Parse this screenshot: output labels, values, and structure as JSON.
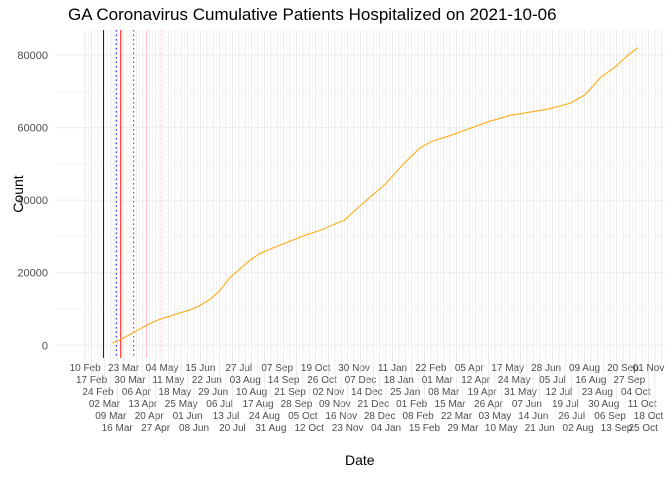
{
  "chart_data": {
    "type": "line",
    "title": "GA Coronavirus Cumulative Patients Hospitalized on 2021-10-06",
    "xlabel": "Date",
    "ylabel": "Count",
    "xlim": [
      "2020-01-08",
      "2021-11-05"
    ],
    "ylim": [
      -3500,
      86900
    ],
    "y_ticks": [
      0,
      20000,
      40000,
      60000,
      80000
    ],
    "y_tick_labels": [
      "0",
      "20000",
      "40000",
      "60000",
      "80000"
    ],
    "x_ticks": [
      "2020-02-10",
      "2020-02-17",
      "2020-02-24",
      "2020-03-02",
      "2020-03-09",
      "2020-03-16",
      "2020-03-23",
      "2020-03-30",
      "2020-04-06",
      "2020-04-13",
      "2020-04-20",
      "2020-04-27",
      "2020-05-04",
      "2020-05-11",
      "2020-05-18",
      "2020-05-25",
      "2020-06-01",
      "2020-06-08",
      "2020-06-15",
      "2020-06-22",
      "2020-06-29",
      "2020-07-06",
      "2020-07-13",
      "2020-07-20",
      "2020-07-27",
      "2020-08-03",
      "2020-08-10",
      "2020-08-17",
      "2020-08-24",
      "2020-08-31",
      "2020-09-07",
      "2020-09-14",
      "2020-09-21",
      "2020-09-28",
      "2020-10-05",
      "2020-10-12",
      "2020-10-19",
      "2020-10-26",
      "2020-11-02",
      "2020-11-09",
      "2020-11-16",
      "2020-11-23",
      "2020-11-30",
      "2020-12-07",
      "2020-12-14",
      "2020-12-21",
      "2020-12-28",
      "2021-01-04",
      "2021-01-11",
      "2021-01-18",
      "2021-01-25",
      "2021-02-01",
      "2021-02-08",
      "2021-02-15",
      "2021-02-22",
      "2021-03-01",
      "2021-03-08",
      "2021-03-15",
      "2021-03-22",
      "2021-03-29",
      "2021-04-05",
      "2021-04-12",
      "2021-04-19",
      "2021-04-26",
      "2021-05-03",
      "2021-05-10",
      "2021-05-17",
      "2021-05-24",
      "2021-05-31",
      "2021-06-07",
      "2021-06-14",
      "2021-06-21",
      "2021-06-28",
      "2021-07-05",
      "2021-07-12",
      "2021-07-19",
      "2021-07-26",
      "2021-08-02",
      "2021-08-09",
      "2021-08-16",
      "2021-08-23",
      "2021-08-30",
      "2021-09-06",
      "2021-09-13",
      "2021-09-20",
      "2021-09-27",
      "2021-10-04",
      "2021-10-11",
      "2021-10-18",
      "2021-10-25",
      "2021-11-01"
    ],
    "x_tick_labels": [
      "10 Feb",
      "17 Feb",
      "24 Feb",
      "02 Mar",
      "09 Mar",
      "16 Mar",
      "23 Mar",
      "30 Mar",
      "06 Apr",
      "13 Apr",
      "20 Apr",
      "27 Apr",
      "04 May",
      "11 May",
      "18 May",
      "25 May",
      "01 Jun",
      "08 Jun",
      "15 Jun",
      "22 Jun",
      "29 Jun",
      "06 Jul",
      "13 Jul",
      "20 Jul",
      "27 Jul",
      "03 Aug",
      "10 Aug",
      "17 Aug",
      "24 Aug",
      "31 Aug",
      "07 Sep",
      "14 Sep",
      "21 Sep",
      "28 Sep",
      "05 Oct",
      "12 Oct",
      "19 Oct",
      "26 Oct",
      "02 Nov",
      "09 Nov",
      "16 Nov",
      "23 Nov",
      "30 Nov",
      "07 Dec",
      "14 Dec",
      "21 Dec",
      "28 Dec",
      "04 Jan",
      "11 Jan",
      "18 Jan",
      "25 Jan",
      "01 Feb",
      "08 Feb",
      "15 Feb",
      "22 Feb",
      "01 Mar",
      "08 Mar",
      "15 Mar",
      "22 Mar",
      "29 Mar",
      "05 Apr",
      "12 Apr",
      "19 Apr",
      "26 Apr",
      "03 May",
      "10 May",
      "17 May",
      "24 May",
      "31 May",
      "07 Jun",
      "14 Jun",
      "21 Jun",
      "28 Jun",
      "05 Jul",
      "12 Jul",
      "19 Jul",
      "26 Jul",
      "02 Aug",
      "09 Aug",
      "16 Aug",
      "23 Aug",
      "30 Aug",
      "06 Sep",
      "13 Sep",
      "20 Sep",
      "27 Sep",
      "04 Oct",
      "11 Oct",
      "18 Oct",
      "25 Oct",
      "01 Nov"
    ],
    "grid": true,
    "series": [
      {
        "color": "#FFA500",
        "x": [
          "2020-03-11",
          "2020-03-19",
          "2020-04-04",
          "2020-04-20",
          "2020-05-01",
          "2020-05-18",
          "2020-06-03",
          "2020-06-14",
          "2020-06-25",
          "2020-07-06",
          "2020-07-17",
          "2020-07-28",
          "2020-08-08",
          "2020-08-19",
          "2020-09-04",
          "2020-09-21",
          "2020-10-07",
          "2020-10-24",
          "2020-11-09",
          "2020-11-20",
          "2020-12-01",
          "2020-12-17",
          "2021-01-03",
          "2021-01-25",
          "2021-02-10",
          "2021-02-23",
          "2021-03-15",
          "2021-04-06",
          "2021-04-28",
          "2021-05-20",
          "2021-06-11",
          "2021-07-02",
          "2021-07-24",
          "2021-08-10",
          "2021-08-26",
          "2021-09-12",
          "2021-09-23",
          "2021-10-06"
        ],
        "y": [
          600,
          1500,
          3700,
          5900,
          7100,
          8500,
          9700,
          10900,
          12600,
          15000,
          18600,
          21000,
          23400,
          25300,
          27000,
          28700,
          30300,
          31700,
          33400,
          34600,
          37200,
          40700,
          44400,
          50500,
          54400,
          56200,
          57800,
          59800,
          61800,
          63400,
          64300,
          65200,
          66700,
          69100,
          73700,
          76800,
          79400,
          82000
        ]
      }
    ],
    "vlines": [
      {
        "date": "2020-03-01",
        "color": "#0000FF",
        "style": "solid"
      },
      {
        "date": "2020-03-15",
        "color": "#0000FF",
        "style": "dotted"
      },
      {
        "date": "2020-03-20",
        "color": "#FF0000",
        "style": "solid"
      },
      {
        "date": "2020-04-03",
        "color": "#FF0000",
        "style": "dotted"
      },
      {
        "date": "2020-04-17",
        "color": "#FFC0CB",
        "style": "solid"
      },
      {
        "date": "2020-05-02",
        "color": "#FFC0CB",
        "style": "dotted"
      }
    ]
  }
}
